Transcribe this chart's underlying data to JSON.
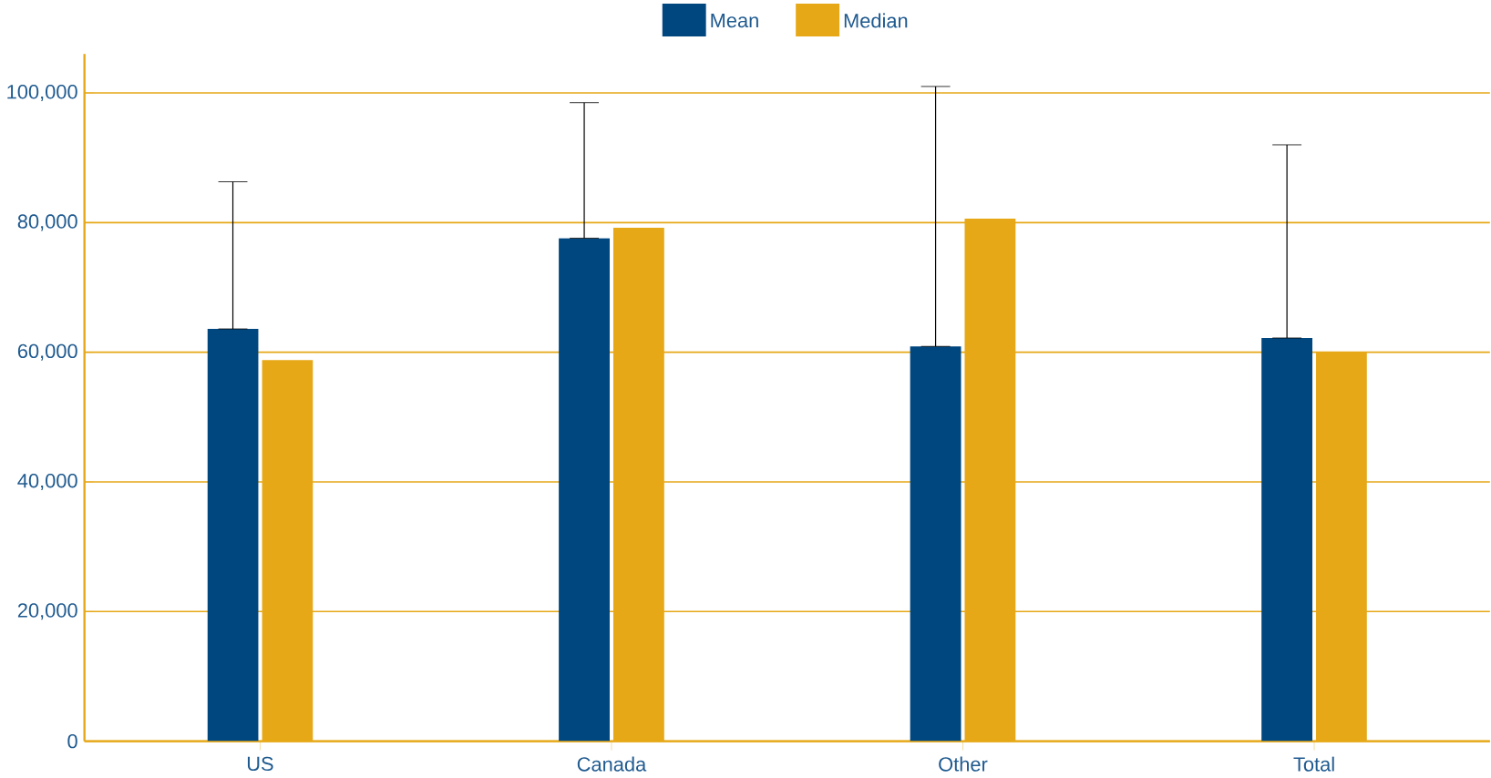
{
  "chart_data": {
    "type": "bar",
    "categories": [
      "US",
      "Canada",
      "Other",
      "Total"
    ],
    "series": [
      {
        "name": "Mean",
        "color": "#00467f",
        "values": [
          63600,
          77600,
          60900,
          62200
        ],
        "errors": [
          [
            63600,
            86300
          ],
          [
            77600,
            98500
          ],
          [
            60900,
            101000
          ],
          [
            62200,
            92000
          ]
        ]
      },
      {
        "name": "Median",
        "color": "#e6a817",
        "values": [
          58800,
          79200,
          80600,
          60100
        ]
      }
    ],
    "ylim": [
      0,
      106000
    ],
    "yticks": [
      {
        "value": 0,
        "label": "0"
      },
      {
        "value": 20000,
        "label": "20,000"
      },
      {
        "value": 40000,
        "label": "40,000"
      },
      {
        "value": 60000,
        "label": "60,000"
      },
      {
        "value": 80000,
        "label": "80,000"
      },
      {
        "value": 100000,
        "label": "100,000"
      }
    ],
    "grid": "y",
    "legend": "top"
  }
}
